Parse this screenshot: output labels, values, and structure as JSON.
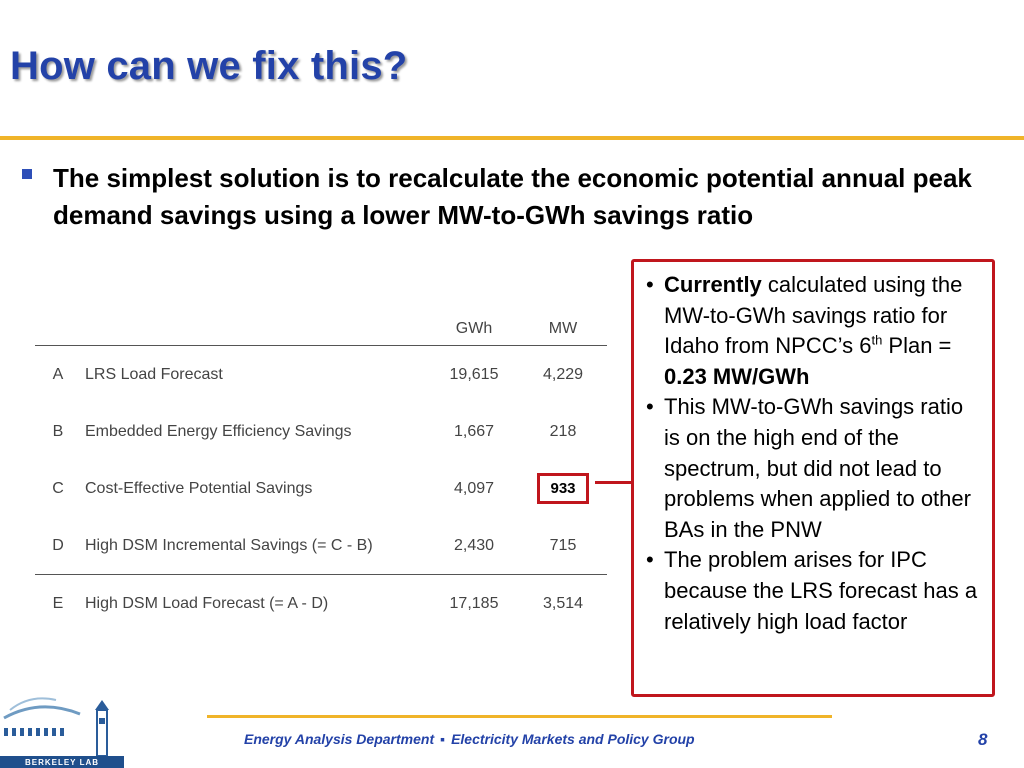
{
  "slide": {
    "title": "How can we fix this?",
    "main_bullet": "The simplest solution is to recalculate the economic potential annual peak demand savings using a lower MW-to-GWh savings ratio"
  },
  "table": {
    "headers": {
      "gwh": "GWh",
      "mw": "MW"
    },
    "rows": [
      {
        "letter": "A",
        "label": "LRS Load Forecast",
        "gwh": "19,615",
        "mw": "4,229"
      },
      {
        "letter": "B",
        "label": "Embedded Energy Efficiency Savings",
        "gwh": "1,667",
        "mw": "218"
      },
      {
        "letter": "C",
        "label": "Cost-Effective Potential Savings",
        "gwh": "4,097",
        "mw": "933"
      },
      {
        "letter": "D",
        "label": "High DSM Incremental Savings (= C - B)",
        "gwh": "2,430",
        "mw": "715"
      },
      {
        "letter": "E",
        "label": "High DSM Load Forecast (= A - D)",
        "gwh": "17,185",
        "mw": "3,514"
      }
    ]
  },
  "callout": {
    "b1_bold": "Currently",
    "b1_text": " calculated using the MW-to-GWh savings ratio for Idaho from NPCC’s 6",
    "b1_sup": "th",
    "b1_plan": " Plan = ",
    "b1_value": "0.23 MW/GWh",
    "b2": "This MW-to-GWh savings ratio is on the high end of the spectrum, but did not lead to problems when applied to other BAs in the PNW",
    "b3": "The problem arises for IPC because the LRS forecast has a relatively high load factor"
  },
  "footer": {
    "dept": "Energy Analysis Department",
    "separator": "▪",
    "group": "Electricity Markets and Policy Group",
    "page": "8"
  },
  "logo": {
    "text": "BERKELEY LAB"
  },
  "colors": {
    "title": "#2342a8",
    "accent_rule": "#f0b429",
    "highlight": "#c0161d"
  }
}
